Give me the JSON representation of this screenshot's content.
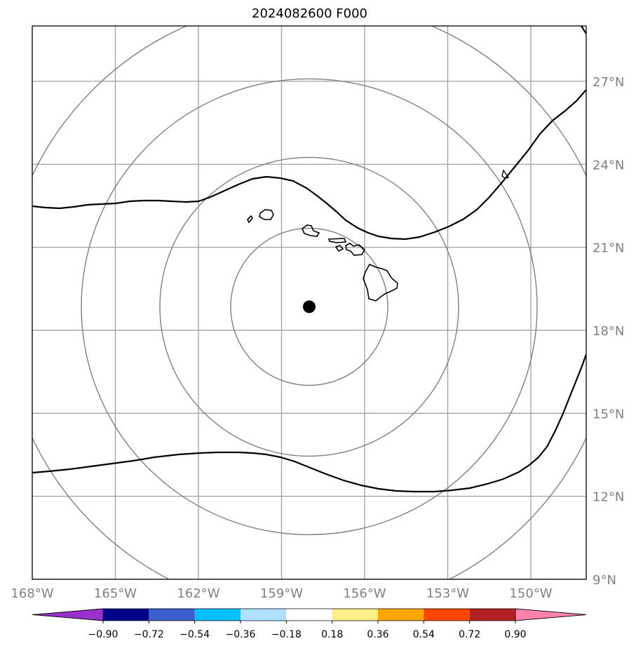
{
  "title": "2024082600 F000",
  "map": {
    "lon_range": [
      -168,
      -148
    ],
    "lat_range": [
      9,
      29
    ],
    "gridline_color": "#a0a0a0",
    "range_ring_color": "#808080",
    "contour_color": "#000000",
    "storm_center": {
      "lon": -158.0,
      "lat": 18.85
    }
  },
  "lat_labels": [
    {
      "lat": 27,
      "text": "27°N"
    },
    {
      "lat": 24,
      "text": "24°N"
    },
    {
      "lat": 21,
      "text": "21°N"
    },
    {
      "lat": 18,
      "text": "18°N"
    },
    {
      "lat": 15,
      "text": "15°N"
    },
    {
      "lat": 12,
      "text": "12°N"
    },
    {
      "lat": 9,
      "text": "9°N"
    }
  ],
  "lon_labels": [
    {
      "lon": -168,
      "text": "168°W"
    },
    {
      "lon": -165,
      "text": "165°W"
    },
    {
      "lon": -162,
      "text": "162°W"
    },
    {
      "lon": -159,
      "text": "159°W"
    },
    {
      "lon": -156,
      "text": "156°W"
    },
    {
      "lon": -153,
      "text": "153°W"
    },
    {
      "lon": -150,
      "text": "150°W"
    }
  ],
  "colorbar": {
    "colors": [
      "#9932cc",
      "#00008b",
      "#3a5fcd",
      "#00bfff",
      "#b0e0ff",
      "#ffffff",
      "#ffee88",
      "#ffa500",
      "#ff4500",
      "#b22222",
      "#ff82ab"
    ],
    "tick_labels": [
      "−0.90",
      "−0.72",
      "−0.54",
      "−0.36",
      "−0.18",
      "0.18",
      "0.36",
      "0.54",
      "0.72",
      "0.90"
    ]
  }
}
